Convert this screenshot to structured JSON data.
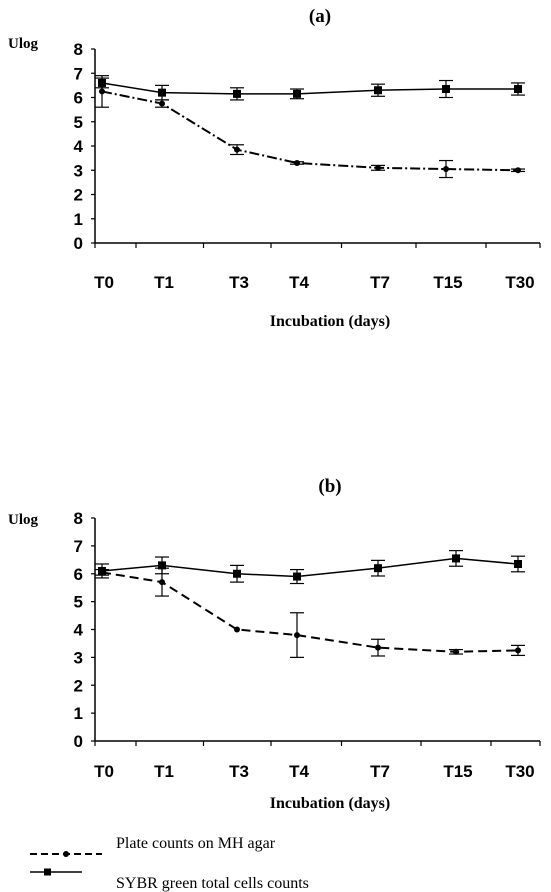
{
  "chart_data": [
    {
      "type": "line",
      "title": "(a)",
      "ylabel": "Ulog",
      "xlabel": "Incubation (days)",
      "categories": [
        "T0",
        "T1",
        "T3",
        "T4",
        "T7",
        "T15",
        "T30"
      ],
      "ylim": [
        0,
        8
      ],
      "yticks": [
        "0",
        "1",
        "2",
        "3",
        "4",
        "5",
        "6",
        "7",
        "8"
      ],
      "series": [
        {
          "name": "Plate counts on MH agar",
          "style": "dash-dot",
          "marker": "circle",
          "values": [
            6.25,
            5.75,
            3.85,
            3.3,
            3.1,
            3.05,
            3.0
          ],
          "errors": [
            0.65,
            0.15,
            0.2,
            0.05,
            0.1,
            0.35,
            0.05
          ]
        },
        {
          "name": "SYBR green total cells counts",
          "style": "solid",
          "marker": "square",
          "values": [
            6.6,
            6.2,
            6.15,
            6.15,
            6.3,
            6.35,
            6.35
          ],
          "errors": [
            0.2,
            0.3,
            0.25,
            0.2,
            0.25,
            0.35,
            0.25
          ]
        }
      ]
    },
    {
      "type": "line",
      "title": "(b)",
      "ylabel": "Ulog",
      "xlabel": "Incubation (days)",
      "categories": [
        "T0",
        "T1",
        "T3",
        "T4",
        "T7",
        "T15",
        "T30"
      ],
      "ylim": [
        0,
        8
      ],
      "yticks": [
        "0",
        "1",
        "2",
        "3",
        "4",
        "5",
        "6",
        "7",
        "8"
      ],
      "series": [
        {
          "name": "Plate counts on MH agar",
          "style": "dashed",
          "marker": "circle",
          "values": [
            6.05,
            5.7,
            4.0,
            3.8,
            3.35,
            3.2,
            3.25
          ],
          "errors": [
            0.1,
            0.5,
            0.0,
            0.8,
            0.3,
            0.08,
            0.18
          ]
        },
        {
          "name": "SYBR green total cells counts",
          "style": "solid",
          "marker": "square",
          "values": [
            6.1,
            6.3,
            6.0,
            5.9,
            6.2,
            6.55,
            6.35
          ],
          "errors": [
            0.25,
            0.3,
            0.3,
            0.25,
            0.28,
            0.28,
            0.28
          ]
        }
      ]
    }
  ],
  "legend": [
    {
      "label": "Plate counts on MH agar",
      "style": "dashed",
      "marker": "circle"
    },
    {
      "label": "SYBR green total cells counts",
      "style": "solid",
      "marker": "square"
    }
  ]
}
